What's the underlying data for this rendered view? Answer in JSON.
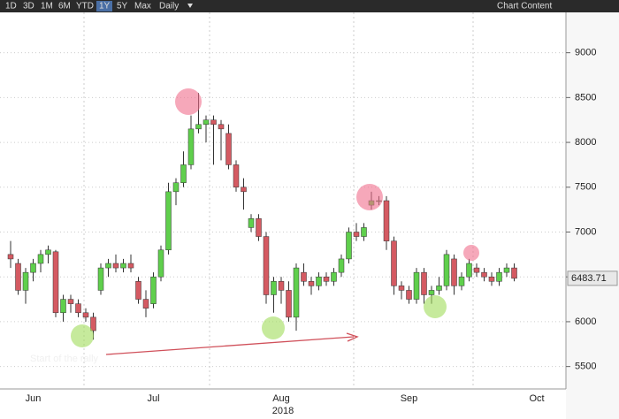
{
  "toolbar": {
    "ranges": [
      "1D",
      "3D",
      "1M",
      "6M",
      "YTD",
      "1Y",
      "5Y",
      "Max"
    ],
    "interval": "Daily",
    "menu": "Chart Content"
  },
  "chart_data": {
    "type": "candlestick",
    "categories": [
      null,
      null,
      null,
      null,
      null,
      null,
      null,
      null,
      null,
      null,
      null,
      null,
      null,
      null,
      null,
      null,
      null,
      null,
      null,
      null,
      null,
      null,
      null,
      null,
      null,
      null,
      null,
      null,
      null,
      null,
      null,
      null,
      null,
      null,
      null,
      null,
      null,
      null,
      null,
      null,
      null,
      null,
      null,
      null,
      null,
      null,
      null,
      null,
      null,
      null,
      null,
      null,
      null,
      null,
      null,
      null,
      null,
      null,
      null,
      null,
      null,
      null,
      null,
      null,
      null,
      null,
      null,
      null
    ],
    "open": [
      6750,
      6650,
      6350,
      6550,
      6650,
      6750,
      6780,
      6100,
      6250,
      6200,
      6100,
      6050,
      6350,
      6600,
      6650,
      6600,
      6650,
      6450,
      6250,
      6200,
      6500,
      6800,
      7450,
      7550,
      7750,
      8150,
      8200,
      8250,
      8200,
      8100,
      7750,
      7500,
      7050,
      7150,
      6950,
      6300,
      6450,
      6350,
      6050,
      6550,
      6450,
      6400,
      6500,
      6450,
      6550,
      6700,
      7000,
      6950,
      7300,
      7350,
      7350,
      6900,
      6400,
      6350,
      6250,
      6550,
      6300,
      6350,
      6400,
      6700,
      6400,
      6500,
      6600,
      6550,
      6500,
      6450,
      6550,
      6600
    ],
    "high": [
      6900,
      6700,
      6600,
      6700,
      6800,
      6850,
      6800,
      6300,
      6300,
      6250,
      6150,
      6100,
      6650,
      6700,
      6750,
      6700,
      6750,
      6500,
      6350,
      6550,
      6850,
      7550,
      7600,
      7900,
      8300,
      8550,
      8300,
      8300,
      8250,
      8200,
      7800,
      7600,
      7200,
      7200,
      7000,
      6500,
      6500,
      6450,
      6650,
      6650,
      6500,
      6550,
      6550,
      6600,
      6750,
      7050,
      7100,
      7100,
      7450,
      7400,
      7400,
      6950,
      6450,
      6400,
      6600,
      6600,
      6400,
      6500,
      6800,
      6750,
      6550,
      6700,
      6650,
      6600,
      6550,
      6600,
      6650,
      6650
    ],
    "low": [
      6600,
      6300,
      6200,
      6450,
      6550,
      6650,
      6050,
      6000,
      6100,
      6050,
      6000,
      5800,
      6300,
      6500,
      6550,
      6550,
      6550,
      6200,
      6050,
      6150,
      6450,
      6750,
      7300,
      7500,
      7700,
      8100,
      8000,
      7750,
      7800,
      7700,
      7450,
      7250,
      7000,
      6900,
      6200,
      6100,
      6200,
      6000,
      5900,
      6400,
      6300,
      6350,
      6400,
      6400,
      6500,
      6650,
      6900,
      6900,
      7250,
      7300,
      6800,
      6300,
      6250,
      6200,
      6200,
      6200,
      6200,
      6300,
      6350,
      6300,
      6350,
      6450,
      6500,
      6450,
      6400,
      6400,
      6500,
      6450
    ],
    "close": [
      6700,
      6350,
      6550,
      6650,
      6750,
      6800,
      6100,
      6250,
      6200,
      6100,
      6050,
      5900,
      6600,
      6650,
      6600,
      6650,
      6600,
      6250,
      6150,
      6500,
      6800,
      7450,
      7550,
      7750,
      8150,
      8200,
      8250,
      8200,
      8150,
      7750,
      7500,
      7450,
      7150,
      6950,
      6300,
      6450,
      6350,
      6050,
      6600,
      6450,
      6400,
      6500,
      6450,
      6550,
      6700,
      7000,
      6950,
      7050,
      7350,
      7350,
      6900,
      6400,
      6350,
      6250,
      6550,
      6300,
      6350,
      6400,
      6750,
      6400,
      6500,
      6650,
      6550,
      6500,
      6450,
      6550,
      6600,
      6483.71
    ],
    "up_color": "#5fcf4c",
    "down_color": "#d45a62",
    "ylim": [
      5250,
      9450
    ],
    "yticks": [
      5500,
      6000,
      6500,
      7000,
      7500,
      8000,
      8500,
      9000
    ],
    "grid": true,
    "xticks": [
      {
        "value": 3,
        "label": "Jun"
      },
      {
        "value": 19,
        "label": "Jul"
      },
      {
        "value": 36,
        "label": "Aug"
      },
      {
        "value": 53,
        "label": "Sep"
      },
      {
        "value": 70,
        "label": "Oct"
      }
    ],
    "x_sublabel": "2018",
    "annotation": "Start of the rally"
  }
}
